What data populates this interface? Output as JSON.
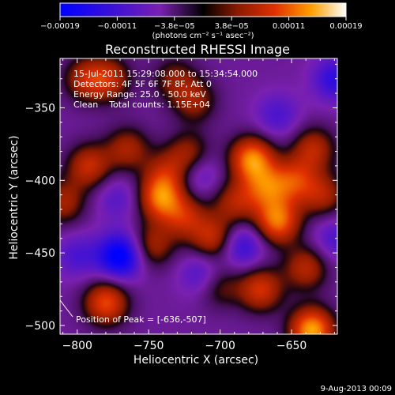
{
  "chart_data": {
    "type": "heatmap",
    "title": "Reconstructed RHESSI Image",
    "xlabel": "Heliocentric X (arcsec)",
    "ylabel": "Heliocentric Y (arcsec)",
    "xlim": [
      -812,
      -618
    ],
    "ylim": [
      -506,
      -316
    ],
    "xticks": [
      -800,
      -750,
      -700,
      -650
    ],
    "yticks": [
      -500,
      -450,
      -400,
      -350
    ],
    "colorbar": {
      "ticks": [
        "-0.00019",
        "-0.00011",
        "-3.8e-05",
        "3.8e-05",
        "0.00011",
        "0.00019"
      ],
      "unit": "(photons cm⁻² s⁻¹ asec⁻²)",
      "range": [
        -0.00019,
        0.00019
      ]
    },
    "info_lines": [
      "15-Jul-2011 15:29:08.000 to 15:34:54.000",
      "Detectors: 4F 5F 6F 7F 8F, Att 0",
      "Energy Range: 25.0 - 50.0 keV",
      "Clean    Total counts: 1.15E+04"
    ],
    "peak_label": "Position of Peak = [-636,-507]",
    "peak": [
      -636,
      -507
    ],
    "sources": [
      {
        "x": -810,
        "y": -415,
        "v": 9e-05
      },
      {
        "x": -792,
        "y": -390,
        "v": 0.00011
      },
      {
        "x": -795,
        "y": -330,
        "v": 9e-05
      },
      {
        "x": -778,
        "y": -330,
        "v": 0.0001
      },
      {
        "x": -765,
        "y": -378,
        "v": 9e-05
      },
      {
        "x": -780,
        "y": -484,
        "v": 0.00014
      },
      {
        "x": -748,
        "y": -445,
        "v": 9e-05
      },
      {
        "x": -742,
        "y": -412,
        "v": 0.00015
      },
      {
        "x": -738,
        "y": -395,
        "v": 8e-05
      },
      {
        "x": -725,
        "y": -425,
        "v": 0.0001
      },
      {
        "x": -722,
        "y": -382,
        "v": 9e-05
      },
      {
        "x": -718,
        "y": -345,
        "v": 8e-05
      },
      {
        "x": -732,
        "y": -330,
        "v": 7e-05
      },
      {
        "x": -705,
        "y": -440,
        "v": 0.00011
      },
      {
        "x": -702,
        "y": -472,
        "v": 8e-05
      },
      {
        "x": -690,
        "y": -415,
        "v": 9e-05
      },
      {
        "x": -678,
        "y": -385,
        "v": 0.00017
      },
      {
        "x": -668,
        "y": -405,
        "v": 0.00012
      },
      {
        "x": -660,
        "y": -428,
        "v": 0.00016
      },
      {
        "x": -648,
        "y": -400,
        "v": 0.00011
      },
      {
        "x": -635,
        "y": -378,
        "v": 0.0001
      },
      {
        "x": -628,
        "y": -410,
        "v": 9e-05
      },
      {
        "x": -640,
        "y": -460,
        "v": 0.0001
      },
      {
        "x": -672,
        "y": -475,
        "v": 0.00012
      },
      {
        "x": -636,
        "y": -503,
        "v": 0.00019
      },
      {
        "x": -770,
        "y": -452,
        "v": -0.00016
      },
      {
        "x": -712,
        "y": -465,
        "v": -8e-05
      },
      {
        "x": -685,
        "y": -445,
        "v": -9e-05
      },
      {
        "x": -620,
        "y": -330,
        "v": -9e-05
      },
      {
        "x": -715,
        "y": -395,
        "v": -6e-05
      },
      {
        "x": -772,
        "y": -412,
        "v": -5e-05
      },
      {
        "x": -660,
        "y": -355,
        "v": -6e-05
      },
      {
        "x": -800,
        "y": -452,
        "v": -6e-05
      },
      {
        "x": -620,
        "y": -440,
        "v": -6e-05
      }
    ]
  },
  "footer": "9-Aug-2013 00:09"
}
